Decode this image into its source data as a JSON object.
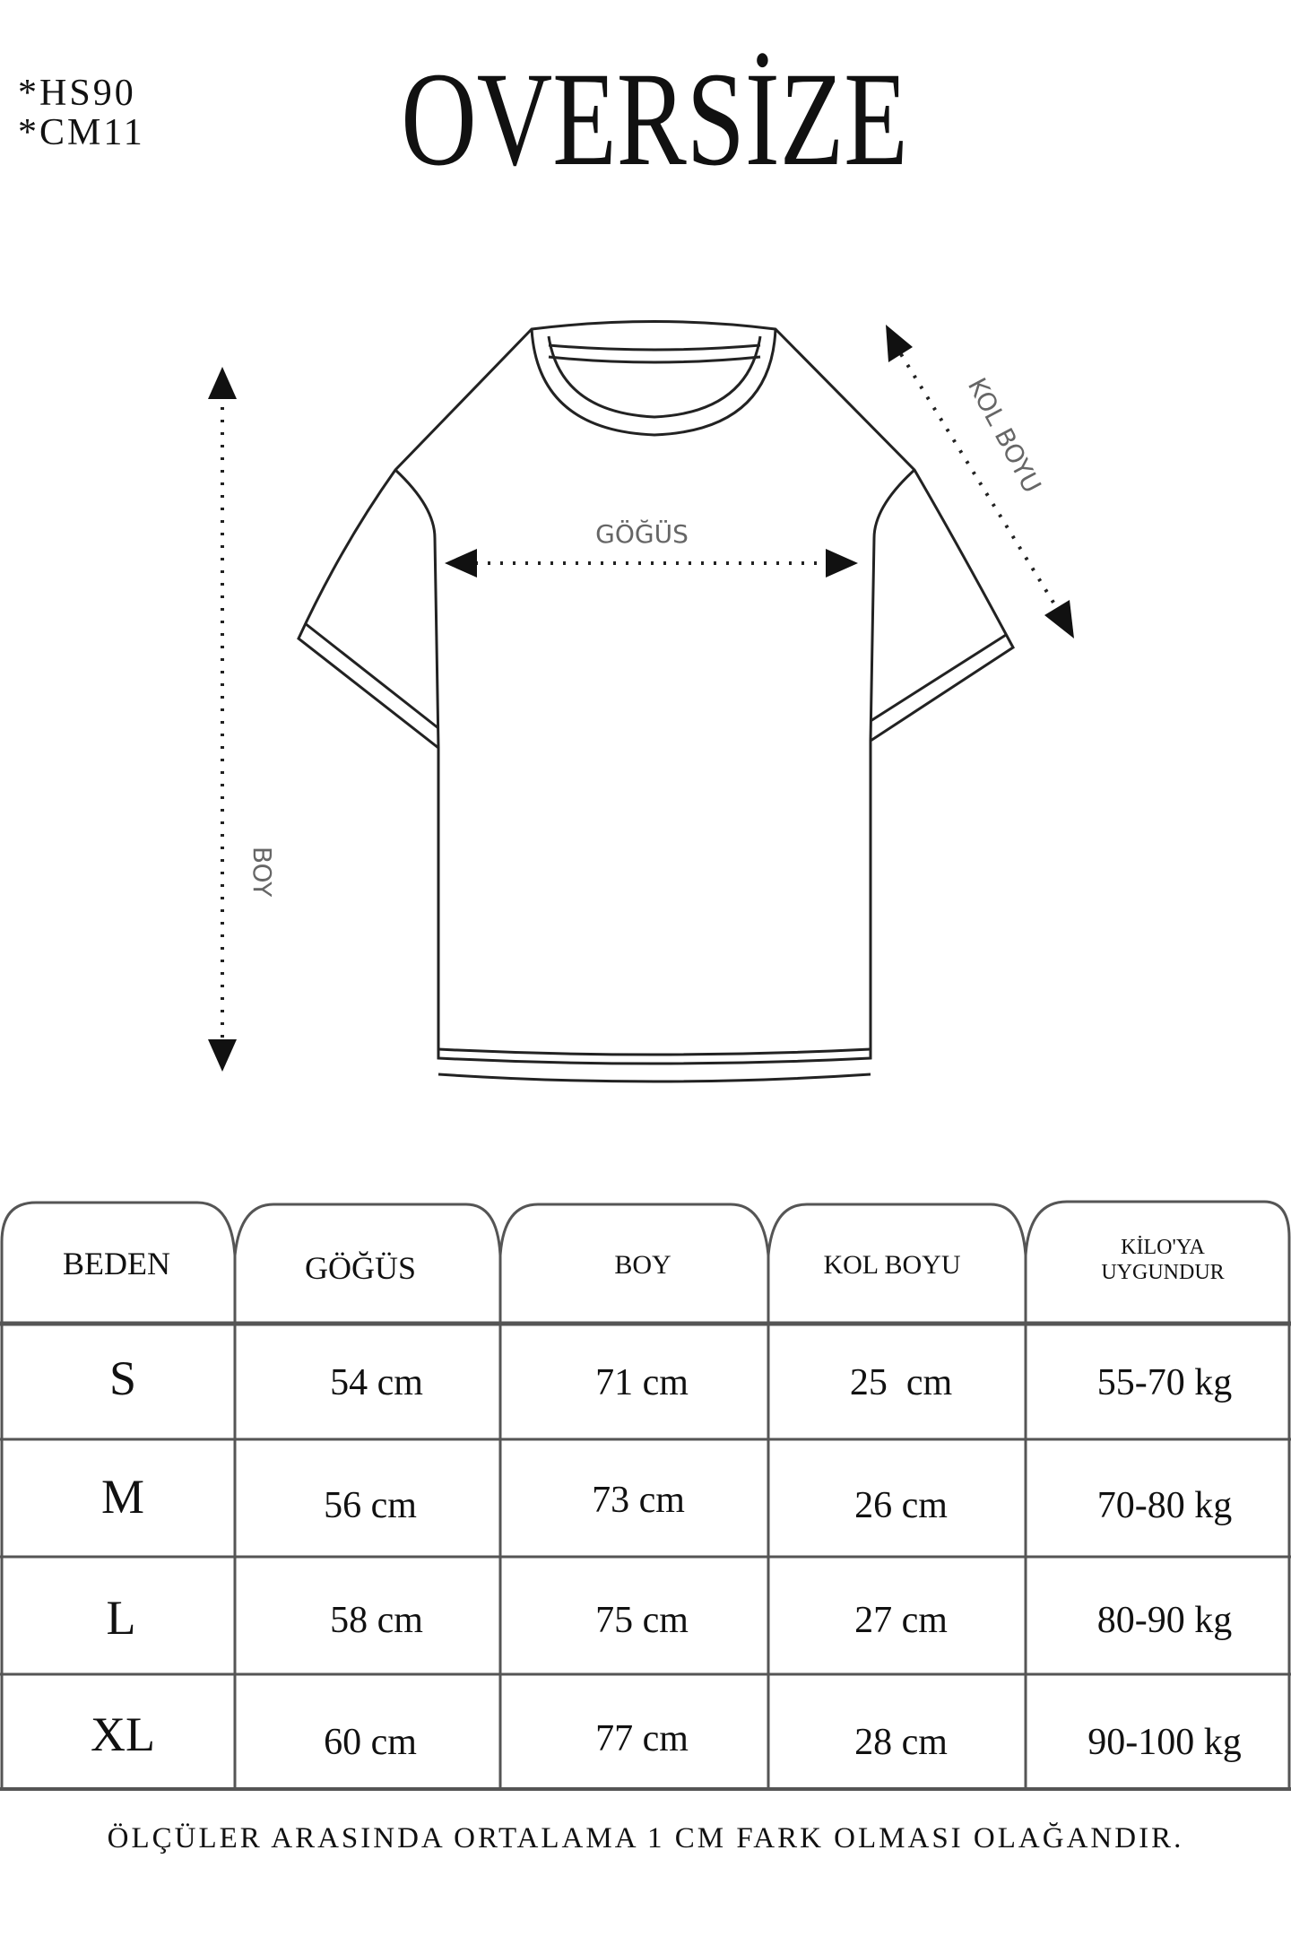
{
  "codes": [
    "*HS90",
    "*CM11"
  ],
  "title": "OVERSİZE",
  "diagram": {
    "labels": {
      "chest": "GÖĞÜS",
      "length": "BOY",
      "sleeve": "KOL BOYU"
    }
  },
  "table": {
    "headers": [
      "BEDEN",
      "GÖĞÜS",
      "BOY",
      "KOL BOYU",
      [
        "KİLO'YA",
        "UYGUNDUR"
      ]
    ],
    "rows": [
      [
        "S",
        "54 cm",
        "71 cm",
        "25  cm",
        "55-70 kg"
      ],
      [
        "M",
        "56 cm",
        "73 cm",
        "26 cm",
        "70-80 kg"
      ],
      [
        "L",
        "58 cm",
        "75 cm",
        "27 cm",
        "80-90 kg"
      ],
      [
        "XL",
        "60 cm",
        "77 cm",
        "28 cm",
        "90-100 kg"
      ]
    ]
  },
  "footer": "ÖLÇÜLER ARASINDA ORTALAMA 1 CM FARK OLMASI OLAĞANDIR."
}
